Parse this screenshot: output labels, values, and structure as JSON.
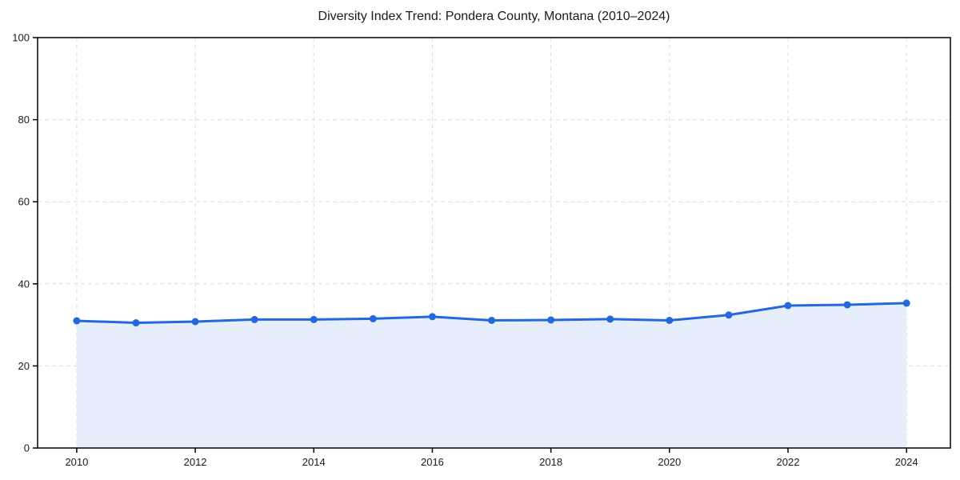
{
  "chart_data": {
    "type": "line",
    "title": "Diversity Index Trend: Pondera County, Montana (2010–2024)",
    "xlabel": "",
    "ylabel": "",
    "x": [
      2010,
      2011,
      2012,
      2013,
      2014,
      2015,
      2016,
      2017,
      2018,
      2019,
      2020,
      2021,
      2022,
      2023,
      2024
    ],
    "series": [
      {
        "name": "Diversity Index",
        "values": [
          31.0,
          30.5,
          30.8,
          31.3,
          31.3,
          31.5,
          32.0,
          31.1,
          31.2,
          31.4,
          31.1,
          32.4,
          34.7,
          34.9,
          35.3
        ]
      }
    ],
    "xticks": [
      2010,
      2012,
      2014,
      2016,
      2018,
      2020,
      2022,
      2024
    ],
    "yticks": [
      0,
      20,
      40,
      60,
      80,
      100
    ],
    "xlim": [
      2009.34,
      2024.74
    ],
    "ylim": [
      0,
      100
    ],
    "grid": "dashed",
    "legend": "none",
    "area_fill": true,
    "marker": "circle",
    "colors": {
      "line": "#2368dc",
      "marker": "#2368dc",
      "fill": "#e6eefb",
      "grid": "#dcdcdc",
      "axis": "#000000",
      "text": "#1a1a1a",
      "background": "#ffffff"
    }
  }
}
